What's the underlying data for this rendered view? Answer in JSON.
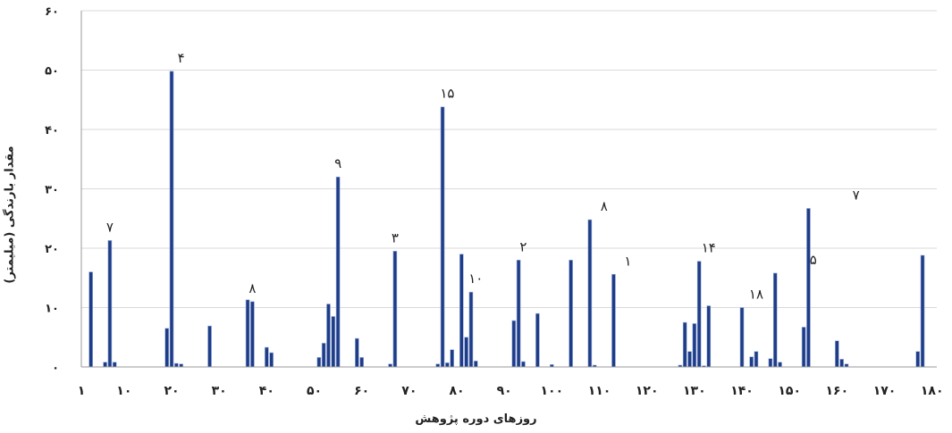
{
  "chart_data": {
    "type": "bar",
    "xlabel": "روزهای دوره پژوهش",
    "ylabel": "مقدار بارندگی (میلیمتر)",
    "xlim": [
      1,
      181
    ],
    "ylim": [
      0,
      60
    ],
    "grid": true,
    "bar_color": "#1f3c88",
    "bar_edge": "#9ab0d8",
    "xticks": [
      1,
      10,
      20,
      30,
      40,
      50,
      60,
      70,
      80,
      90,
      100,
      110,
      120,
      130,
      140,
      150,
      160,
      170,
      180
    ],
    "xtick_labels": [
      "۱",
      "۱۰",
      "۲۰",
      "۳۰",
      "۴۰",
      "۵۰",
      "۶۰",
      "۷۰",
      "۸۰",
      "۹۰",
      "۱۰۰",
      "۱۱۰",
      "۱۲۰",
      "۱۳۰",
      "۱۴۰",
      "۱۵۰",
      "۱۶۰",
      "۱۷۰",
      "۱۸۰"
    ],
    "yticks": [
      0,
      10,
      20,
      30,
      40,
      50,
      60
    ],
    "ytick_labels": [
      "۰",
      "۱۰",
      "۲۰",
      "۳۰",
      "۴۰",
      "۵۰",
      "۶۰"
    ],
    "x": [
      3,
      6,
      7,
      8,
      19,
      20,
      21,
      22,
      28,
      36,
      37,
      40,
      41,
      51,
      52,
      53,
      54,
      55,
      59,
      60,
      66,
      67,
      76,
      77,
      78,
      79,
      81,
      82,
      83,
      84,
      92,
      93,
      94,
      97,
      100,
      104,
      108,
      109,
      113,
      127,
      128,
      129,
      130,
      131,
      132,
      133,
      140,
      142,
      143,
      146,
      147,
      148,
      153,
      154,
      160,
      161,
      162,
      177,
      178
    ],
    "values": [
      16.0,
      0.8,
      21.3,
      0.8,
      6.5,
      49.8,
      0.6,
      0.5,
      6.9,
      11.3,
      11.0,
      3.3,
      2.4,
      1.6,
      4.0,
      10.6,
      8.5,
      32.0,
      4.8,
      1.6,
      0.5,
      19.5,
      0.5,
      43.8,
      0.7,
      2.9,
      19.0,
      5.0,
      12.6,
      1.0,
      7.8,
      18.0,
      0.9,
      9.0,
      0.4,
      18.0,
      24.8,
      0.3,
      15.6,
      0.3,
      7.5,
      2.6,
      7.3,
      17.8,
      0.2,
      10.3,
      10.0,
      1.7,
      2.6,
      1.4,
      15.8,
      0.8,
      6.7,
      26.7,
      4.4,
      1.3,
      0.5,
      2.6,
      18.8
    ],
    "annotations": [
      {
        "x": 7,
        "y": 21.3,
        "text": "۷"
      },
      {
        "x": 22,
        "y": 49.8,
        "text": "۴"
      },
      {
        "x": 37,
        "y": 11.0,
        "text": "۸"
      },
      {
        "x": 55,
        "y": 32.0,
        "text": "۹"
      },
      {
        "x": 67,
        "y": 19.5,
        "text": "۳"
      },
      {
        "x": 78,
        "y": 43.8,
        "text": "۱۵"
      },
      {
        "x": 84,
        "y": 12.6,
        "text": "۱۰"
      },
      {
        "x": 94,
        "y": 18.0,
        "text": "۲"
      },
      {
        "x": 111,
        "y": 24.8,
        "text": "۸"
      },
      {
        "x": 116,
        "y": 15.6,
        "text": "۱"
      },
      {
        "x": 133,
        "y": 17.8,
        "text": "۱۴"
      },
      {
        "x": 143,
        "y": 10.0,
        "text": "۱۸"
      },
      {
        "x": 155,
        "y": 15.8,
        "text": "۵"
      },
      {
        "x": 164,
        "y": 26.7,
        "text": "۷"
      }
    ]
  }
}
